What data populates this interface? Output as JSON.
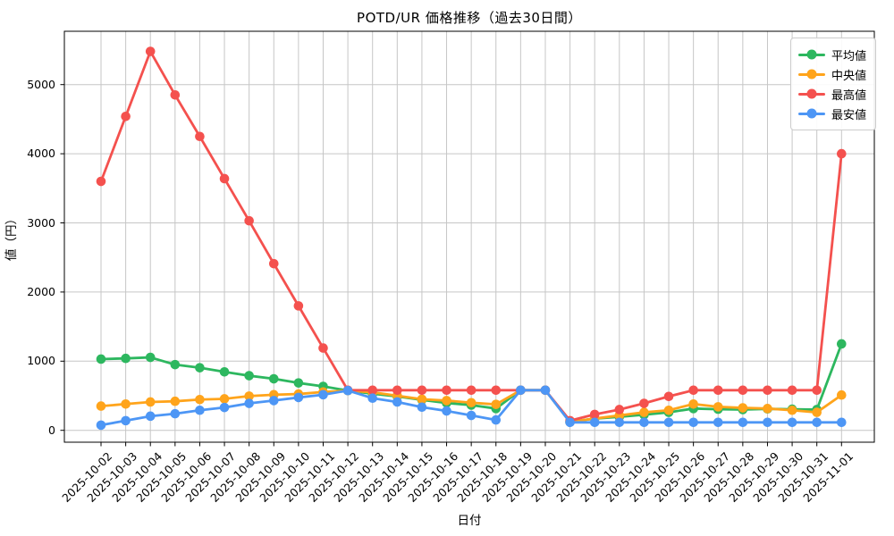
{
  "chart_data": {
    "type": "line",
    "title": "POTD/UR 価格推移（過去30日間）",
    "xlabel": "日付",
    "ylabel": "値（円）",
    "x": [
      "2025-10-02",
      "2025-10-03",
      "2025-10-04",
      "2025-10-05",
      "2025-10-06",
      "2025-10-07",
      "2025-10-08",
      "2025-10-09",
      "2025-10-10",
      "2025-10-11",
      "2025-10-12",
      "2025-10-13",
      "2025-10-14",
      "2025-10-15",
      "2025-10-16",
      "2025-10-17",
      "2025-10-18",
      "2025-10-19",
      "2025-10-20",
      "2025-10-21",
      "2025-10-22",
      "2025-10-23",
      "2025-10-24",
      "2025-10-25",
      "2025-10-26",
      "2025-10-27",
      "2025-10-28",
      "2025-10-29",
      "2025-10-30",
      "2025-10-31",
      "2025-11-01"
    ],
    "series": [
      {
        "key": "average",
        "name": "平均値",
        "color": "#2db75f",
        "values": [
          1030,
          1040,
          1055,
          950,
          905,
          845,
          790,
          745,
          685,
          635,
          575,
          530,
          490,
          440,
          395,
          365,
          315,
          580,
          580,
          120,
          170,
          195,
          225,
          260,
          315,
          305,
          300,
          310,
          305,
          300,
          1250
        ]
      },
      {
        "key": "median",
        "name": "中央値",
        "color": "#ffa41b",
        "values": [
          350,
          380,
          410,
          420,
          445,
          455,
          495,
          515,
          525,
          555,
          575,
          550,
          500,
          450,
          430,
          400,
          375,
          580,
          580,
          120,
          170,
          215,
          260,
          290,
          380,
          340,
          325,
          315,
          290,
          260,
          510
        ]
      },
      {
        "key": "max",
        "name": "最高値",
        "color": "#f4514e",
        "values": [
          3600,
          4540,
          5480,
          4850,
          4250,
          3640,
          3030,
          2410,
          1800,
          1190,
          580,
          580,
          580,
          580,
          580,
          580,
          580,
          580,
          580,
          140,
          230,
          300,
          390,
          490,
          580,
          580,
          580,
          580,
          580,
          580,
          4000
        ]
      },
      {
        "key": "min",
        "name": "最安値",
        "color": "#4d96f5",
        "values": [
          75,
          140,
          205,
          240,
          290,
          330,
          390,
          430,
          475,
          515,
          575,
          465,
          410,
          335,
          280,
          215,
          150,
          580,
          580,
          115,
          115,
          115,
          115,
          115,
          115,
          115,
          115,
          115,
          115,
          115,
          115
        ]
      }
    ],
    "yticks": [
      0,
      1000,
      2000,
      3000,
      4000,
      5000
    ],
    "ylim": [
      -170,
      5770
    ],
    "grid": true,
    "grid_color": "#c6c6c6",
    "spine_color": "#000000",
    "background": "#ffffff",
    "legend_position": "upper right"
  }
}
